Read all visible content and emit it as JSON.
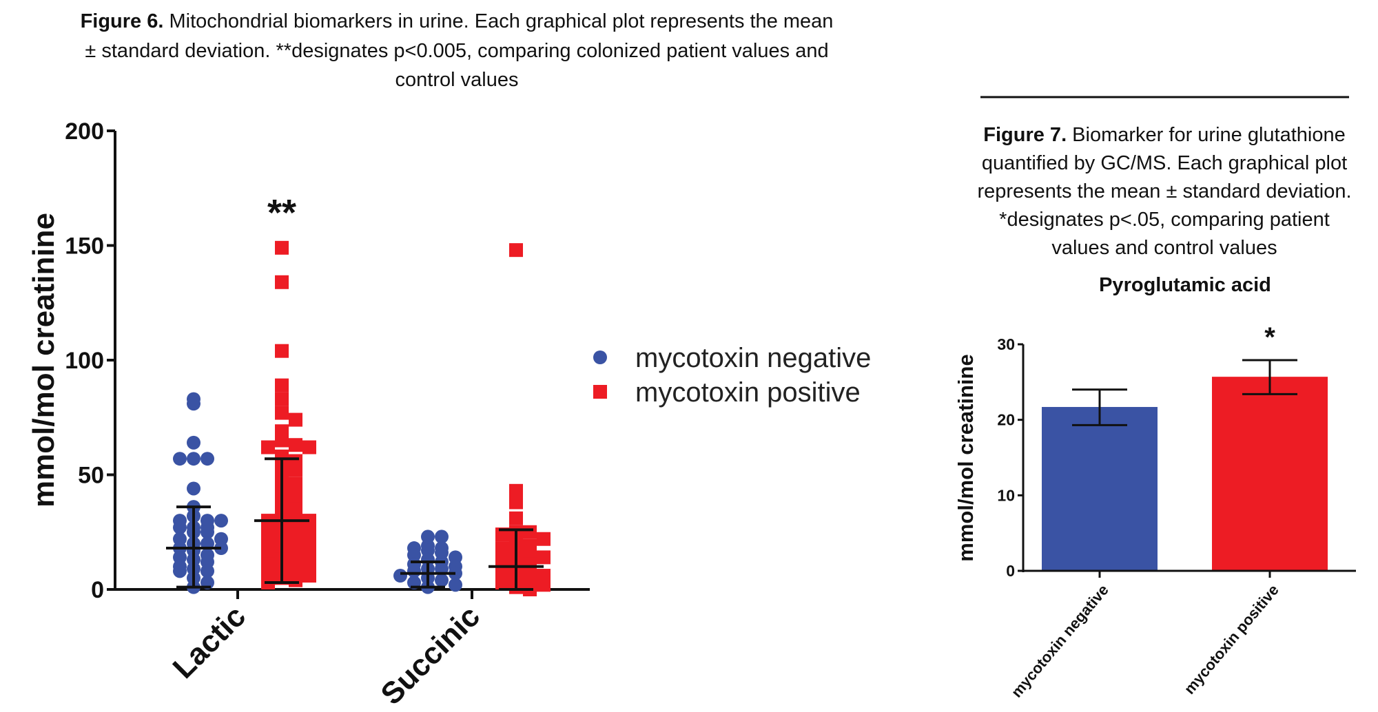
{
  "figure6": {
    "caption_label": "Figure 6.",
    "caption_lines": [
      " Mitochondrial biomarkers in urine. Each graphical plot represents the mean",
      "± standard deviation. **designates p<0.005, comparing colonized patient values and",
      "control values"
    ]
  },
  "figure7": {
    "caption_label": "Figure 7.",
    "caption_lines": [
      " Biomarker for urine glutathione",
      "quantified by GC/MS. Each graphical plot",
      "represents the mean ± standard deviation.",
      "*designates p<.05, comparing patient",
      "values and control values"
    ]
  },
  "chart_data": [
    {
      "type": "scatter",
      "title": "",
      "ylabel": "mmol/mol creatinine",
      "xlabel": "",
      "ylim": [
        0,
        200
      ],
      "yticks": [
        0,
        50,
        100,
        150,
        200
      ],
      "categories": [
        "Lactic",
        "Succinic"
      ],
      "legend_position": "right",
      "grid": false,
      "series": [
        {
          "name": "mycotoxin negative",
          "marker": "circle",
          "color": "#3a53a4",
          "groups": [
            {
              "category": "Lactic",
              "mean": 18,
              "sd_low": 1,
              "sd_high": 36,
              "values": [
                83,
                81,
                64,
                57,
                57,
                57,
                44,
                36,
                32,
                30,
                30,
                30,
                27,
                27,
                27,
                25,
                25,
                22,
                22,
                20,
                20,
                18,
                18,
                17,
                15,
                14,
                13,
                12,
                10,
                9,
                8,
                8,
                5,
                3,
                1
              ]
            },
            {
              "category": "Succinic",
              "mean": 7,
              "sd_low": 1,
              "sd_high": 12,
              "values": [
                23,
                23,
                19,
                18,
                18,
                17,
                16,
                15,
                14,
                13,
                12,
                11,
                10,
                9,
                9,
                8,
                7,
                6,
                5,
                4,
                3,
                2,
                1
              ]
            }
          ]
        },
        {
          "name": "mycotoxin positive",
          "marker": "square",
          "color": "#ed1c24",
          "groups": [
            {
              "category": "Lactic",
              "mean": 30,
              "sd_low": 3,
              "sd_high": 57,
              "values": [
                149,
                134,
                104,
                89,
                83,
                77,
                74,
                69,
                65,
                63,
                62,
                62,
                58,
                57,
                56,
                53,
                52,
                49,
                46,
                45,
                42,
                40,
                38,
                36,
                35,
                33,
                32,
                30,
                30,
                29,
                28,
                27,
                26,
                25,
                24,
                23,
                22,
                21,
                20,
                19,
                18,
                17,
                16,
                15,
                14,
                13,
                12,
                11,
                10,
                9,
                8,
                7,
                6,
                5,
                4,
                3
              ]
            },
            {
              "category": "Succinic",
              "mean": 10,
              "sd_low": 0,
              "sd_high": 26,
              "values": [
                148,
                43,
                38,
                31,
                25,
                25,
                24,
                22,
                20,
                19,
                18,
                17,
                16,
                15,
                14,
                12,
                11,
                10,
                9,
                8,
                7,
                6,
                5,
                4,
                3,
                2,
                1,
                0
              ]
            }
          ]
        }
      ],
      "annotations": [
        {
          "category": "Lactic",
          "text": "**"
        }
      ]
    },
    {
      "type": "bar",
      "title": "Pyroglutamic acid",
      "ylabel": "mmol/mol creatinine",
      "xlabel": "",
      "ylim": [
        0,
        30
      ],
      "yticks": [
        0,
        10,
        20,
        30
      ],
      "categories": [
        "mycotoxin negative",
        "mycotoxin positive"
      ],
      "values": [
        21.7,
        25.7
      ],
      "error_low": [
        19.3,
        23.4
      ],
      "error_high": [
        24.0,
        27.9
      ],
      "colors": [
        "#3a53a4",
        "#ed1c24"
      ],
      "grid": false,
      "annotations": [
        {
          "category": "mycotoxin positive",
          "text": "*"
        }
      ]
    }
  ]
}
